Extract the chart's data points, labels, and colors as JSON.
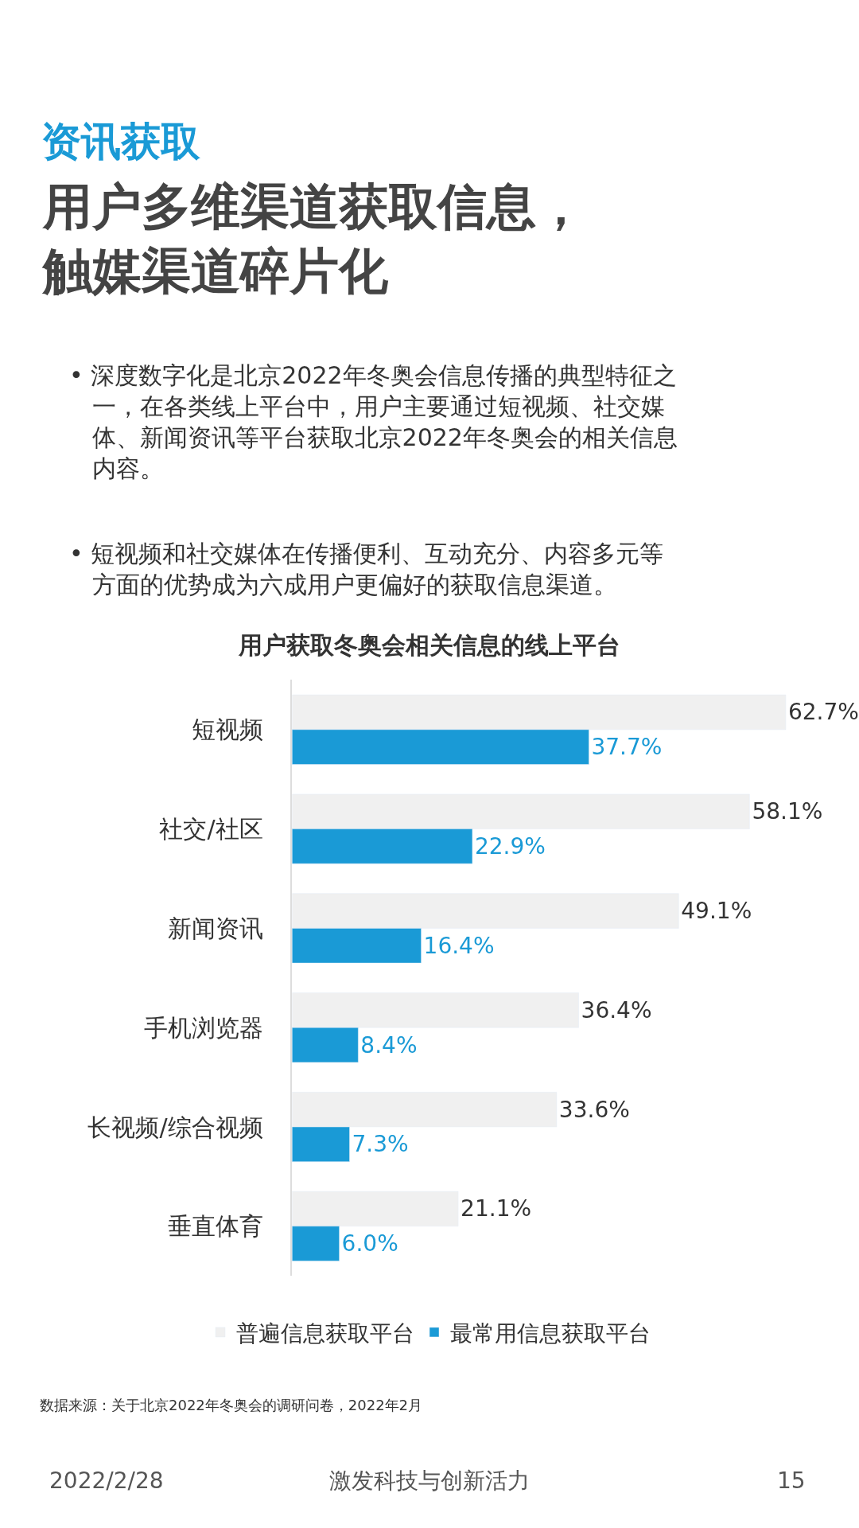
{
  "chart_data": {
    "type": "bar",
    "orientation": "horizontal",
    "title": "用户获取冬奥会相关信息的线上平台",
    "categories": [
      "短视频",
      "社交/社区",
      "新闻资讯",
      "手机浏览器",
      "长视频/综合视频",
      "垂直体育"
    ],
    "series": [
      {
        "name": "普遍信息获取平台",
        "color": "#f0f0f0",
        "values": [
          62.7,
          58.1,
          49.1,
          36.4,
          33.6,
          21.1
        ],
        "value_labels": [
          "62.7%",
          "58.1%",
          "49.1%",
          "36.4%",
          "33.6%",
          "21.1%"
        ]
      },
      {
        "name": "最常用信息获取平台",
        "color": "#1a9ad6",
        "values": [
          37.7,
          22.9,
          16.4,
          8.4,
          7.3,
          6.0
        ],
        "value_labels": [
          "37.7%",
          "22.9%",
          "16.4%",
          "8.4%",
          "7.3%",
          "6.0%"
        ]
      }
    ],
    "tick_labels": "y",
    "legend": "bottom",
    "annotations": [
      "资讯获取",
      "用户多维渠道获取信息，触媒渠道碎片化",
      "• 深度数字化是北京2022年冬奥会信息传播的典型特征之一，在各类线上平台中，用户主要通过短视频、社交媒体、新闻资讯等平台获取北京2022年冬奥会的相关信息内容。",
      "• 短视频和社交媒体在传播便利、互动充分、内容多元等方面的优势成为六成用户更偏好的获取信息渠道。",
      "数据来源：关于北京2022年冬奥会的调研问卷，2022年2月",
      "2022/2/28",
      "激发科技与创新活力",
      "15"
    ]
  }
}
